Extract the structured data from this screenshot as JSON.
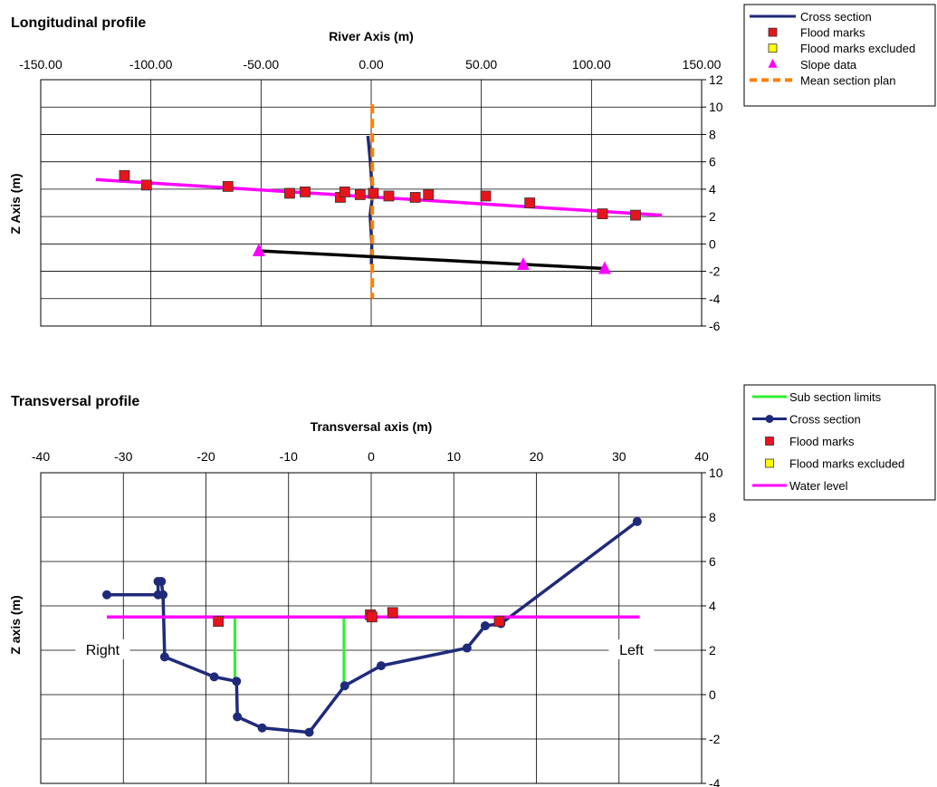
{
  "chart_data": [
    {
      "type": "scatter",
      "title": "Longitudinal profile",
      "xlabel": "River Axis (m)",
      "ylabel": "Z Axis (m)",
      "xlim": [
        -150,
        150
      ],
      "ylim": [
        -6,
        12
      ],
      "x_ticks": [
        -150,
        -100,
        -50,
        0,
        50,
        100,
        150
      ],
      "x_tick_labels": [
        "-150.00",
        "-100.00",
        "-50.00",
        "0.00",
        "50.00",
        "100.00",
        "150.00"
      ],
      "y_ticks": [
        -6,
        -4,
        -2,
        0,
        2,
        4,
        6,
        8,
        10,
        12
      ],
      "y_tick_labels": [
        "-6",
        "-4",
        "-2",
        "0",
        "2",
        "4",
        "6",
        "8",
        "10",
        "12"
      ],
      "grid": true,
      "legend_position": "top-right",
      "series": [
        {
          "name": "Cross section",
          "kind": "line",
          "color": "#1f2a7a",
          "points": [
            [
              -1.5,
              7.9
            ],
            [
              -0.5,
              6.2
            ],
            [
              0.2,
              4.6
            ],
            [
              0.6,
              3.5
            ],
            [
              -0.5,
              2.1
            ],
            [
              0.1,
              0.6
            ],
            [
              0.3,
              0.0
            ],
            [
              0.1,
              -1.5
            ]
          ]
        },
        {
          "name": "Flood marks",
          "kind": "marker",
          "marker": "square",
          "color": "#e8141c",
          "points": [
            [
              -112,
              5.0
            ],
            [
              -102,
              4.3
            ],
            [
              -65,
              4.2
            ],
            [
              -37,
              3.7
            ],
            [
              -30,
              3.8
            ],
            [
              -14,
              3.4
            ],
            [
              -12,
              3.8
            ],
            [
              -5,
              3.6
            ],
            [
              1,
              3.7
            ],
            [
              8,
              3.5
            ],
            [
              20,
              3.4
            ],
            [
              26,
              3.6
            ],
            [
              52,
              3.5
            ],
            [
              72,
              3.0
            ],
            [
              105,
              2.2
            ],
            [
              120,
              2.1
            ]
          ]
        },
        {
          "name": "Flood marks excluded",
          "kind": "marker",
          "marker": "square",
          "color": "#ffff00",
          "points": []
        },
        {
          "name": "Slope data",
          "kind": "marker",
          "marker": "triangle",
          "color": "#ff00ff",
          "points": [
            [
              -51,
              -0.5
            ],
            [
              69,
              -1.5
            ],
            [
              106,
              -1.8
            ]
          ]
        },
        {
          "name": "Mean section plan",
          "kind": "line",
          "dash": true,
          "color": "#ff7f00",
          "points": [
            [
              0.5,
              10.2
            ],
            [
              0.5,
              -4.0
            ]
          ]
        },
        {
          "kind": "line",
          "color": "#ff00ff",
          "points": [
            [
              -125,
              4.7
            ],
            [
              132,
              2.1
            ]
          ]
        },
        {
          "kind": "line",
          "color": "#000000",
          "points": [
            [
              -52,
              -0.5
            ],
            [
              106,
              -1.8
            ]
          ]
        }
      ]
    },
    {
      "type": "line",
      "title": "Transversal profile",
      "xlabel": "Transversal axis (m)",
      "ylabel": "Z axis (m)",
      "xlim": [
        -40,
        40
      ],
      "ylim": [
        -4,
        10
      ],
      "x_ticks": [
        -40,
        -30,
        -20,
        -10,
        0,
        10,
        20,
        30,
        40
      ],
      "x_tick_labels": [
        "-40",
        "-30",
        "-20",
        "-10",
        "0",
        "10",
        "20",
        "30",
        "40"
      ],
      "y_ticks": [
        -4,
        -2,
        0,
        2,
        4,
        6,
        8,
        10
      ],
      "y_tick_labels": [
        "-4",
        "-2",
        "0",
        "2",
        "4",
        "6",
        "8",
        "10"
      ],
      "grid": true,
      "legend_position": "top-right",
      "annotations": [
        {
          "text": "Right",
          "x": -32.5,
          "y": 2.0
        },
        {
          "text": "Left",
          "x": 31.5,
          "y": 2.0
        }
      ],
      "series": [
        {
          "name": "Sub section limits",
          "kind": "segments",
          "color": "#33ee33",
          "segments": [
            [
              [
                -16.5,
                3.5
              ],
              [
                -16.5,
                0.6
              ]
            ],
            [
              [
                -3.3,
                3.5
              ],
              [
                -3.3,
                0.4
              ]
            ]
          ]
        },
        {
          "name": "Cross section",
          "kind": "line",
          "marker": "circle",
          "color": "#1f2a7a",
          "points": [
            [
              -32,
              4.5
            ],
            [
              -25.8,
              4.5
            ],
            [
              -25.8,
              5.1
            ],
            [
              -25.4,
              5.1
            ],
            [
              -25.2,
              4.5
            ],
            [
              -25,
              1.7
            ],
            [
              -19,
              0.8
            ],
            [
              -16.3,
              0.6
            ],
            [
              -16.2,
              -1.0
            ],
            [
              -13.2,
              -1.5
            ],
            [
              -7.5,
              -1.7
            ],
            [
              -3.2,
              0.4
            ],
            [
              1.2,
              1.3
            ],
            [
              11.6,
              2.1
            ],
            [
              13.8,
              3.1
            ],
            [
              15.7,
              3.2
            ],
            [
              32.2,
              7.8
            ]
          ]
        },
        {
          "name": "Flood marks",
          "kind": "marker",
          "marker": "square",
          "color": "#e8141c",
          "points": [
            [
              -18.5,
              3.3
            ],
            [
              -0.1,
              3.6
            ],
            [
              0.1,
              3.5
            ],
            [
              2.6,
              3.7
            ],
            [
              15.5,
              3.3
            ]
          ]
        },
        {
          "name": "Flood marks excluded",
          "kind": "marker",
          "marker": "square",
          "color": "#ffff00",
          "points": []
        },
        {
          "name": "Water level",
          "kind": "line",
          "color": "#ff00ff",
          "points": [
            [
              -32,
              3.5
            ],
            [
              32.5,
              3.5
            ]
          ]
        }
      ]
    }
  ]
}
